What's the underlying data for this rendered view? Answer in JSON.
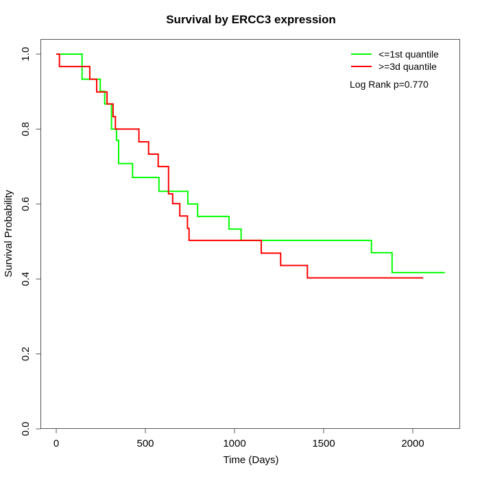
{
  "title": "Survival by ERCC3 expression",
  "xlabel": "Time (Days)",
  "ylabel": "Survival Probability",
  "legend": {
    "items": [
      {
        "label": "<=1st quantile",
        "color": "#00ff00"
      },
      {
        "label": ">=3d quantile",
        "color": "#ff0000"
      }
    ],
    "note": "Log Rank p=0.770"
  },
  "colors": {
    "low_quantile": "#00ff00",
    "high_quantile": "#ff0000",
    "frame": "#555555"
  },
  "chart_data": {
    "type": "line",
    "subtype": "kaplan_meier_step",
    "title": "Survival by ERCC3 expression",
    "xlabel": "Time (Days)",
    "ylabel": "Survival Probability",
    "x_ticks": [
      0,
      500,
      1000,
      1500,
      2000
    ],
    "y_ticks": [
      "0.0",
      "0.2",
      "0.4",
      "0.6",
      "0.8",
      "1.0"
    ],
    "xlim": [
      -87,
      2264
    ],
    "ylim": [
      0.0,
      1.038
    ],
    "grid": false,
    "legend_position": "top-right",
    "annotation": "Log Rank p=0.770",
    "series": [
      {
        "name": "<=1st quantile",
        "color": "#00ff00",
        "end_time": 2180,
        "steps": [
          [
            0,
            1.0
          ],
          [
            145,
            0.933
          ],
          [
            247,
            0.901
          ],
          [
            272,
            0.867
          ],
          [
            310,
            0.8
          ],
          [
            338,
            0.77
          ],
          [
            350,
            0.708
          ],
          [
            428,
            0.671
          ],
          [
            576,
            0.634
          ],
          [
            738,
            0.6
          ],
          [
            793,
            0.567
          ],
          [
            969,
            0.533
          ],
          [
            1037,
            0.503
          ],
          [
            1768,
            0.47
          ],
          [
            1884,
            0.417
          ]
        ]
      },
      {
        "name": ">=3d quantile",
        "color": "#ff0000",
        "end_time": 2058,
        "steps": [
          [
            0,
            1.0
          ],
          [
            18,
            0.967
          ],
          [
            188,
            0.933
          ],
          [
            227,
            0.899
          ],
          [
            285,
            0.867
          ],
          [
            319,
            0.833
          ],
          [
            332,
            0.8
          ],
          [
            464,
            0.766
          ],
          [
            518,
            0.733
          ],
          [
            572,
            0.7
          ],
          [
            630,
            0.627
          ],
          [
            653,
            0.601
          ],
          [
            693,
            0.568
          ],
          [
            736,
            0.535
          ],
          [
            745,
            0.503
          ],
          [
            1150,
            0.469
          ],
          [
            1259,
            0.436
          ],
          [
            1409,
            0.403
          ]
        ]
      }
    ]
  }
}
